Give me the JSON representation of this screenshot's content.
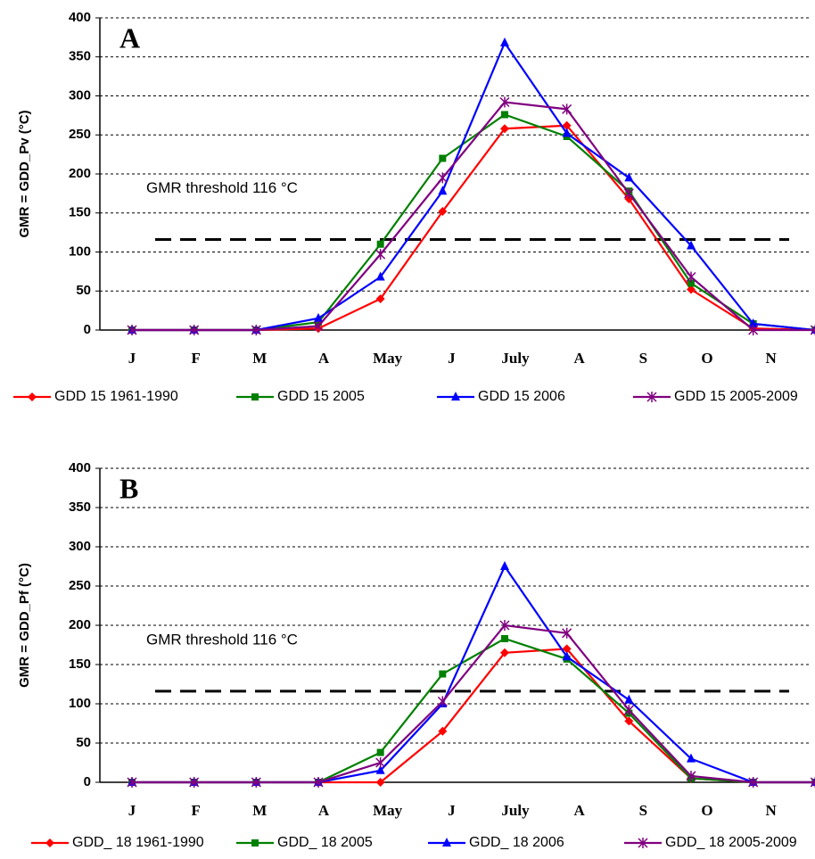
{
  "chart_data": [
    {
      "type": "line",
      "panel_label": "A",
      "y_label": "GMR = GDD_Pv (°C)",
      "categories": [
        "J",
        "F",
        "M",
        "A",
        "May",
        "J",
        "July",
        "A",
        "S",
        "O",
        "N",
        null
      ],
      "ylim": [
        0,
        400
      ],
      "yticks": [
        0,
        50,
        100,
        150,
        200,
        250,
        300,
        350,
        400
      ],
      "grid": true,
      "threshold": {
        "value": 116,
        "label": "GMR threshold 116 °C"
      },
      "series": [
        {
          "name": "GDD 15 1961-1990",
          "color": "#ff0000",
          "marker": "diamond",
          "values": [
            0,
            0,
            0,
            2,
            40,
            152,
            258,
            262,
            168,
            52,
            2,
            0
          ]
        },
        {
          "name": "GDD 15 2005",
          "color": "#008000",
          "marker": "square",
          "values": [
            0,
            0,
            0,
            10,
            110,
            220,
            276,
            248,
            178,
            60,
            8,
            0
          ]
        },
        {
          "name": "GDD 15 2006",
          "color": "#0000ff",
          "marker": "triangle",
          "values": [
            0,
            0,
            0,
            15,
            68,
            178,
            368,
            252,
            195,
            108,
            8,
            0
          ]
        },
        {
          "name": "GDD 15 2005-2009",
          "color": "#800080",
          "marker": "star",
          "values": [
            0,
            0,
            0,
            5,
            97,
            195,
            292,
            283,
            175,
            68,
            0,
            0
          ]
        }
      ]
    },
    {
      "type": "line",
      "panel_label": "B",
      "y_label": "GMR = GDD_Pf (°C)",
      "categories": [
        "J",
        "F",
        "M",
        "A",
        "May",
        "J",
        "July",
        "A",
        "S",
        "O",
        "N",
        null
      ],
      "ylim": [
        0,
        400
      ],
      "yticks": [
        0,
        50,
        100,
        150,
        200,
        250,
        300,
        350,
        400
      ],
      "grid": true,
      "threshold": {
        "value": 116,
        "label": "GMR threshold 116 °C"
      },
      "series": [
        {
          "name": "GDD_ 18 1961-1990",
          "color": "#ff0000",
          "marker": "diamond",
          "values": [
            0,
            0,
            0,
            0,
            0,
            65,
            165,
            170,
            78,
            5,
            0,
            0
          ]
        },
        {
          "name": "GDD_ 18 2005",
          "color": "#008000",
          "marker": "square",
          "values": [
            0,
            0,
            0,
            0,
            38,
            138,
            183,
            157,
            88,
            5,
            0,
            0
          ]
        },
        {
          "name": "GDD_ 18 2006",
          "color": "#0000ff",
          "marker": "triangle",
          "values": [
            0,
            0,
            0,
            0,
            15,
            100,
            275,
            160,
            105,
            30,
            0,
            0
          ]
        },
        {
          "name": "GDD_ 18 2005-2009",
          "color": "#800080",
          "marker": "star",
          "values": [
            0,
            0,
            0,
            0,
            25,
            103,
            200,
            190,
            92,
            8,
            0,
            0
          ]
        }
      ]
    }
  ]
}
